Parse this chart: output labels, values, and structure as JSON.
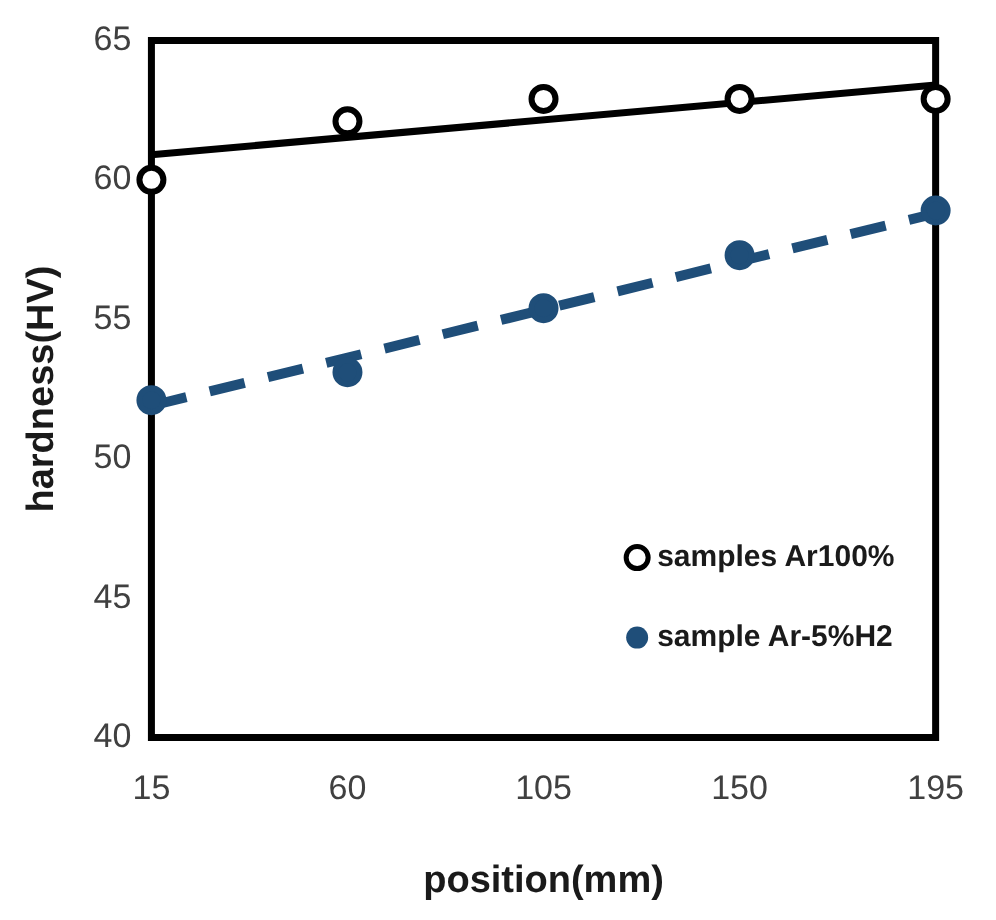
{
  "chart_data": {
    "type": "scatter",
    "xlabel": "position(mm)",
    "ylabel": "hardness(HV)",
    "x": [
      15,
      60,
      105,
      150,
      195
    ],
    "series": [
      {
        "name": "samples Ar100%",
        "color": "#000000",
        "values": [
          60.0,
          62.1,
          62.9,
          62.9,
          62.9
        ],
        "marker": "circle"
      },
      {
        "name": "sample Ar-5%H2",
        "color": "#1f4e79",
        "values": [
          52.1,
          53.1,
          55.4,
          57.3,
          58.9
        ],
        "marker": "circle"
      },
      {
        "type": "line",
        "color": "#000000",
        "values": [
          60.9,
          null,
          null,
          null,
          63.4
        ],
        "marker": "none",
        "line_style": "solid"
      },
      {
        "type": "line",
        "color": "#1f4e79",
        "values": [
          51.9,
          null,
          null,
          null,
          58.8
        ],
        "marker": "none",
        "line_style": "dashed"
      }
    ],
    "xlim": [
      15,
      195
    ],
    "xticks": [
      15,
      60,
      105,
      150,
      195
    ],
    "ylim": [
      40,
      65
    ],
    "yticks": [
      40,
      45,
      50,
      55,
      60,
      65
    ],
    "grid": false,
    "legend": "bottom right"
  }
}
